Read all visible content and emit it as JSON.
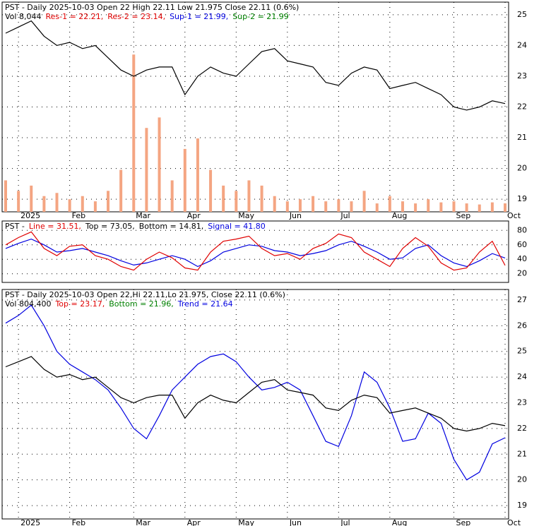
{
  "chart_data": [
    {
      "type": "line",
      "header": [
        [
          {
            "text": "PST - Daily 2025-10-03 Open 22  High 22.11  Low 21.975  Close 22.11 (0.6%)",
            "color": "#000000"
          }
        ],
        [
          {
            "text": "Vol 8,044",
            "color": "#000000"
          },
          {
            "text": "Res-1 = 22.21,",
            "color": "#e00000"
          },
          {
            "text": "Res-2 = 23.14,",
            "color": "#e00000"
          },
          {
            "text": "Sup-1 = 21.99,",
            "color": "#0000e0"
          },
          {
            "text": "Sup-2 = 21.99",
            "color": "#008000"
          }
        ]
      ],
      "categories": [
        null,
        "2025",
        null,
        null,
        null,
        "Feb",
        null,
        null,
        null,
        null,
        "Mar",
        null,
        null,
        null,
        "Apr",
        null,
        null,
        null,
        "May",
        null,
        null,
        null,
        "Jun",
        null,
        null,
        null,
        "Jul",
        null,
        null,
        null,
        "Aug",
        null,
        null,
        null,
        null,
        "Sep",
        null,
        null,
        null,
        "Oct"
      ],
      "series": [
        {
          "color": "#f4a582",
          "axis": "y2",
          "style": "bar",
          "values": [
            30000,
            20000,
            25000,
            15000,
            18000,
            12000,
            15000,
            10000,
            20000,
            40000,
            150000,
            80000,
            90000,
            30000,
            60000,
            70000,
            40000,
            25000,
            20000,
            30000,
            25000,
            15000,
            10000,
            12000,
            15000,
            10000,
            12000,
            10000,
            20000,
            8000,
            15000,
            10000,
            8000,
            12000,
            9000,
            10000,
            8000,
            7000,
            9000,
            8044
          ]
        },
        {
          "color": "#000000",
          "style": "line",
          "values": [
            24.4,
            24.6,
            24.8,
            24.3,
            24.0,
            24.1,
            23.9,
            24.0,
            23.6,
            23.2,
            23.0,
            23.2,
            23.3,
            23.3,
            22.4,
            23.0,
            23.3,
            23.1,
            23.0,
            23.4,
            23.8,
            23.9,
            23.5,
            23.4,
            23.3,
            22.8,
            22.7,
            23.1,
            23.3,
            23.2,
            22.6,
            22.7,
            22.8,
            22.6,
            22.4,
            22.0,
            21.9,
            22.0,
            22.2,
            22.11
          ]
        }
      ],
      "ylim": [
        18.59,
        25.41
      ],
      "yticks": [
        19,
        20,
        21,
        22,
        23,
        24,
        25
      ],
      "y2lim": [
        0,
        200000
      ],
      "grid": true
    },
    {
      "type": "line",
      "header": [
        [
          {
            "text": "PST - ",
            "color": "#000000"
          },
          {
            "text": "Line = 31.51,",
            "color": "#e00000"
          },
          {
            "text": "Top = 73.05,",
            "color": "#000000"
          },
          {
            "text": "Bottom = 14.81,",
            "color": "#000000"
          },
          {
            "text": "Signal = 41.80",
            "color": "#0000e0"
          }
        ]
      ],
      "series": [
        {
          "color": "#0000e0",
          "style": "line",
          "values": [
            55,
            62,
            68,
            60,
            50,
            52,
            55,
            50,
            45,
            38,
            32,
            35,
            40,
            45,
            40,
            30,
            38,
            50,
            55,
            60,
            58,
            52,
            50,
            45,
            48,
            52,
            60,
            65,
            58,
            50,
            40,
            42,
            55,
            60,
            45,
            35,
            30,
            38,
            48,
            41.8
          ]
        },
        {
          "color": "#e00000",
          "style": "line",
          "values": [
            60,
            70,
            78,
            55,
            45,
            58,
            60,
            45,
            40,
            30,
            25,
            40,
            50,
            42,
            28,
            25,
            50,
            65,
            68,
            72,
            55,
            45,
            48,
            40,
            55,
            62,
            75,
            70,
            50,
            40,
            30,
            55,
            70,
            58,
            35,
            25,
            28,
            50,
            65,
            31.51
          ]
        }
      ],
      "ylim": [
        8,
        93
      ],
      "yticks": [
        20,
        40,
        60,
        80
      ],
      "grid": true
    },
    {
      "type": "line",
      "header": [
        [
          {
            "text": "PST - Daily 2025-10-03 Open 22,Hi 22.11,Lo 21.975, Close 22.11 (0.6%)",
            "color": "#000000"
          }
        ],
        [
          {
            "text": "Vol 804,400",
            "color": "#000000"
          },
          {
            "text": "Top = 23.17,",
            "color": "#e00000"
          },
          {
            "text": "Bottom = 21.96,",
            "color": "#008000"
          },
          {
            "text": "Trend = 21.64",
            "color": "#0000e0"
          }
        ]
      ],
      "categories": [
        null,
        "2025",
        null,
        null,
        null,
        "Feb",
        null,
        null,
        null,
        null,
        "Mar",
        null,
        null,
        null,
        "Apr",
        null,
        null,
        null,
        "May",
        null,
        null,
        null,
        "Jun",
        null,
        null,
        null,
        "Jul",
        null,
        null,
        null,
        "Aug",
        null,
        null,
        null,
        null,
        "Sep",
        null,
        null,
        null,
        "Oct"
      ],
      "series": [
        {
          "color": "#0000e0",
          "style": "line",
          "values": [
            26.1,
            26.4,
            26.8,
            26.0,
            25.0,
            24.5,
            24.2,
            23.9,
            23.5,
            22.8,
            22.0,
            21.6,
            22.5,
            23.5,
            24.0,
            24.5,
            24.8,
            24.9,
            24.6,
            24.0,
            23.5,
            23.6,
            23.8,
            23.5,
            22.5,
            21.5,
            21.3,
            22.5,
            24.2,
            23.8,
            22.8,
            21.5,
            21.6,
            22.6,
            22.2,
            20.8,
            20.0,
            20.3,
            21.4,
            21.64
          ]
        },
        {
          "color": "#000000",
          "style": "line",
          "values": [
            24.4,
            24.6,
            24.8,
            24.3,
            24.0,
            24.1,
            23.9,
            24.0,
            23.6,
            23.2,
            23.0,
            23.2,
            23.3,
            23.3,
            22.4,
            23.0,
            23.3,
            23.1,
            23.0,
            23.4,
            23.8,
            23.9,
            23.5,
            23.4,
            23.3,
            22.8,
            22.7,
            23.1,
            23.3,
            23.2,
            22.6,
            22.7,
            22.8,
            22.6,
            22.4,
            22.0,
            21.9,
            22.0,
            22.2,
            22.11
          ]
        }
      ],
      "ylim": [
        18.48,
        27.41
      ],
      "yticks": [
        19,
        20,
        21,
        22,
        23,
        24,
        25,
        26,
        27
      ],
      "grid": true
    }
  ]
}
